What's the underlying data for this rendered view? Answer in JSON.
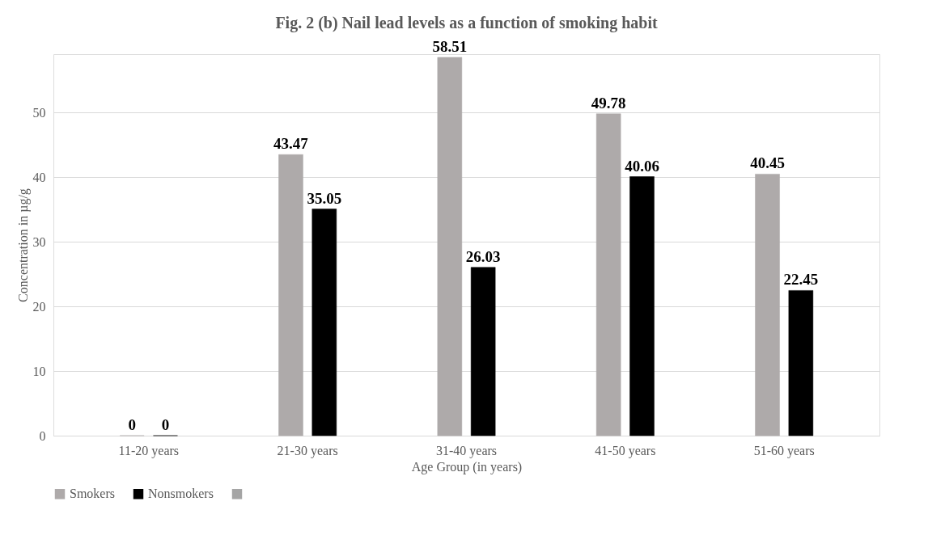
{
  "chart_data": {
    "type": "bar",
    "title": "Fig. 2 (b) Nail lead levels as a function of smoking habit",
    "xlabel": "Age Group (in years)",
    "ylabel": "Concentration in µg/g",
    "categories": [
      "11-20 years",
      "21-30 years",
      "31-40 years",
      "41-50 years",
      "51-60 years"
    ],
    "series": [
      {
        "name": "Smokers",
        "color": "#aeaaaa",
        "values": [
          0,
          43.47,
          58.51,
          49.78,
          40.45
        ]
      },
      {
        "name": "Nonsmokers",
        "color": "#000000",
        "values": [
          0,
          35.05,
          26.03,
          40.06,
          22.45
        ]
      },
      {
        "color": "#a5a5a5",
        "values": [
          null,
          null,
          null,
          null,
          null
        ]
      }
    ],
    "ylim": [
      0,
      59
    ],
    "yticks": [
      0,
      10,
      20,
      30,
      40,
      50
    ],
    "grid": "y",
    "legend": "bottom",
    "data_labels": true
  }
}
